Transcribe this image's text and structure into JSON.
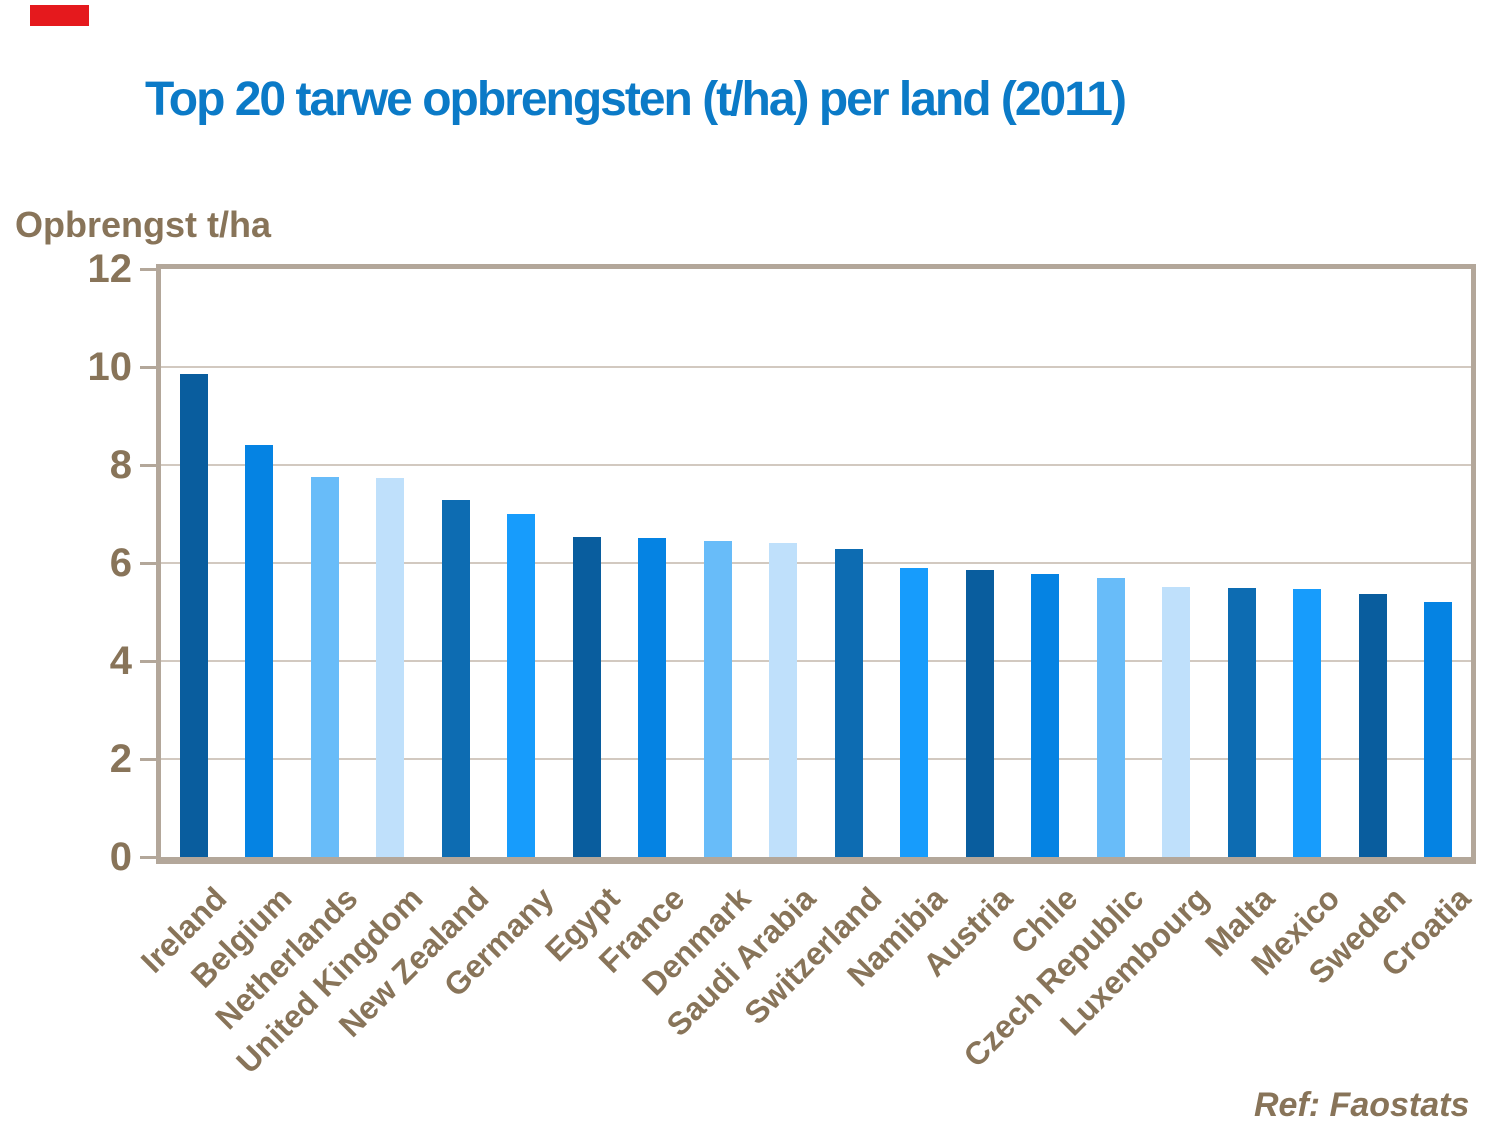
{
  "page": {
    "background": "#ffffff"
  },
  "red_marker": {
    "color": "#e5191d"
  },
  "title": {
    "text": "Top 20 tarwe opbrengsten (t/ha) per land (2011)",
    "color": "#0b7ac7"
  },
  "source": {
    "text": "Ref: Faostats"
  },
  "styles": {
    "text_color": "#887459",
    "frame_color": "#b3a79a",
    "gridline_color": "#d2c9c0",
    "palette": [
      "#095D9E",
      "#0583E3",
      "#68BCF9",
      "#BFE0FB",
      "#0D6CB2",
      "#179CFC"
    ]
  },
  "chart_data": {
    "type": "bar",
    "title": "Top 20 tarwe opbrengsten (t/ha) per land (2011)",
    "ylabel": "Opbrengst t/ha",
    "xlabel": "",
    "ylim": [
      0,
      12
    ],
    "yticks": [
      0,
      2,
      4,
      6,
      8,
      10,
      12
    ],
    "grid": true,
    "legend": "none",
    "categories": [
      "Ireland",
      "Belgium",
      "Netherlands",
      "United Kingdom",
      "New Zealand",
      "Germany",
      "Egypt",
      "France",
      "Denmark",
      "Saudi Arabia",
      "Switzerland",
      "Namibia",
      "Austria",
      "Chile",
      "Czech Republic",
      "Luxembourg",
      "Malta",
      "Mexico",
      "Sweden",
      "Croatia"
    ],
    "values": [
      9.85,
      8.4,
      7.76,
      7.74,
      7.28,
      7.01,
      6.53,
      6.51,
      6.45,
      6.4,
      6.28,
      5.89,
      5.86,
      5.78,
      5.69,
      5.51,
      5.48,
      5.46,
      5.36,
      5.21
    ],
    "bar_color_cycle_note": "bars cycle through 6-color blue palette in order",
    "annotations": [
      "Ref: Faostats"
    ]
  }
}
